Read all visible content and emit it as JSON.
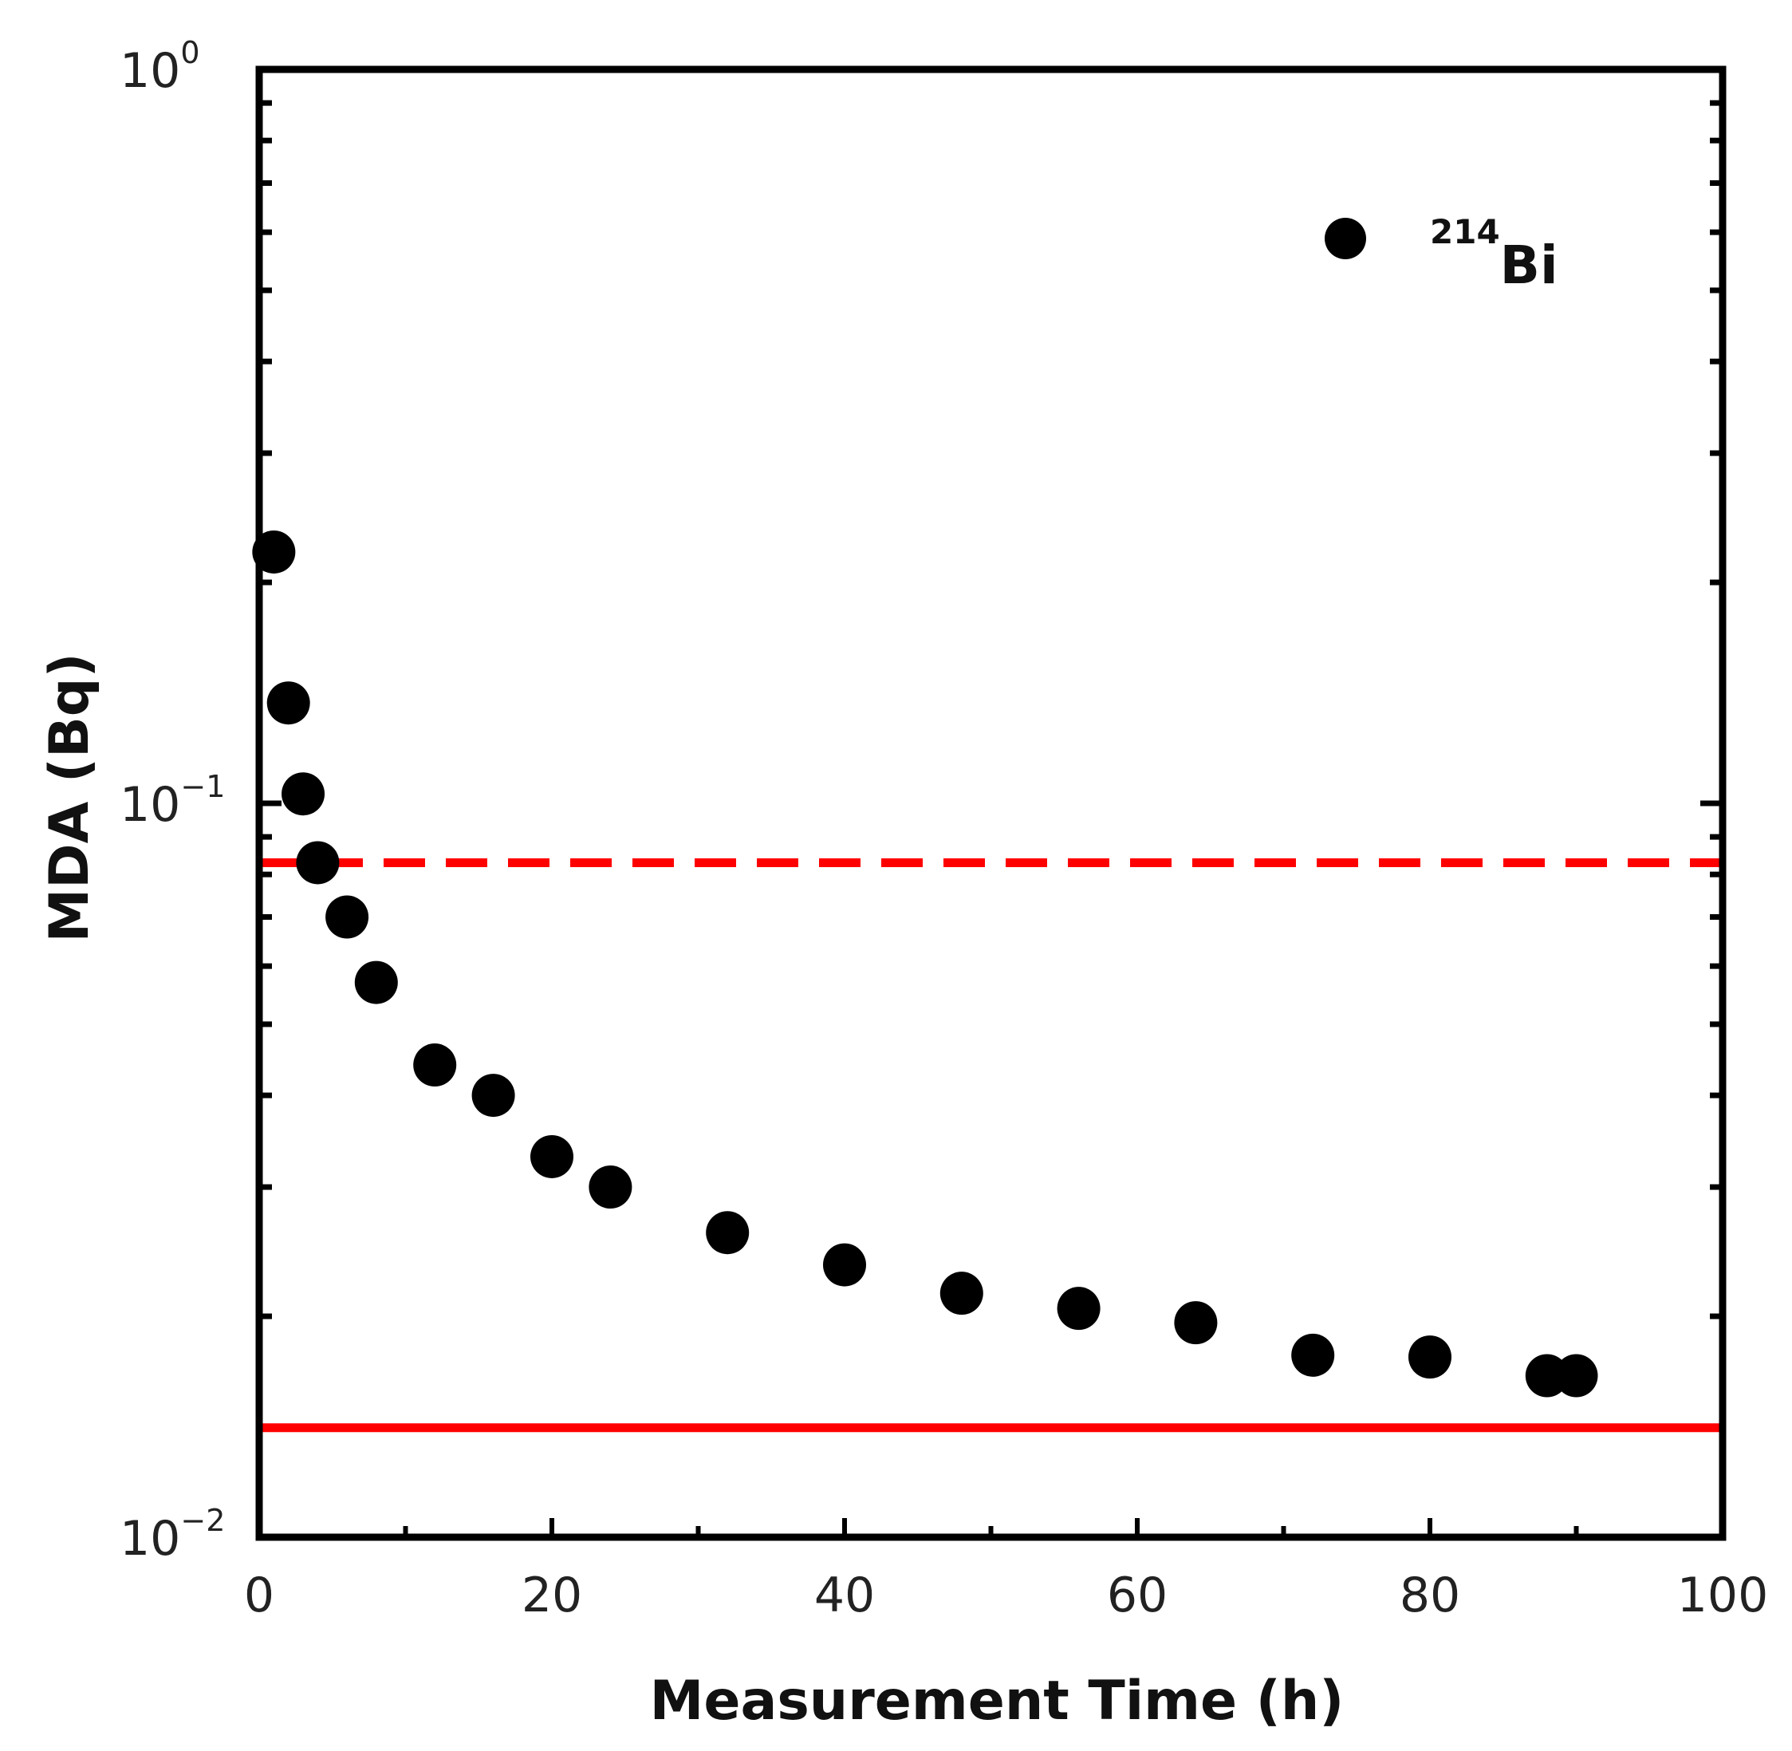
{
  "chart_data": {
    "type": "scatter",
    "xlabel": "Measurement Time (h)",
    "ylabel": "MDA (Bq)",
    "xlim": [
      0,
      100
    ],
    "ylim": [
      0.01,
      1
    ],
    "yscale": "log",
    "x_ticks": [
      {
        "value": 0,
        "label": "0"
      },
      {
        "value": 20,
        "label": "20"
      },
      {
        "value": 40,
        "label": "40"
      },
      {
        "value": 60,
        "label": "60"
      },
      {
        "value": 80,
        "label": "80"
      },
      {
        "value": 100,
        "label": "100"
      }
    ],
    "y_ticks": [
      {
        "value": 1,
        "base": "10",
        "exponent": "0"
      },
      {
        "value": 0.1,
        "base": "10",
        "exponent": "−1"
      },
      {
        "value": 0.01,
        "base": "10",
        "exponent": "−2"
      }
    ],
    "legend": {
      "placement": "top-right",
      "isotope_mass": "214",
      "isotope_symbol": "Bi"
    },
    "series": [
      {
        "name": "214Bi",
        "color": "#000000",
        "x": [
          1,
          2,
          3,
          4,
          6,
          8,
          12,
          16,
          20,
          24,
          32,
          40,
          48,
          56,
          64,
          72,
          80,
          88,
          90
        ],
        "y": [
          0.22,
          0.137,
          0.103,
          0.083,
          0.07,
          0.057,
          0.044,
          0.04,
          0.033,
          0.03,
          0.026,
          0.0235,
          0.0215,
          0.0205,
          0.0196,
          0.0177,
          0.0176,
          0.0166,
          0.0166
        ]
      }
    ],
    "reference_lines": [
      {
        "name": "dashed-reference",
        "y": 0.083,
        "color": "#ff0000",
        "style": "dashed"
      },
      {
        "name": "solid-reference",
        "y": 0.0141,
        "color": "#ff0000",
        "style": "solid"
      }
    ]
  }
}
